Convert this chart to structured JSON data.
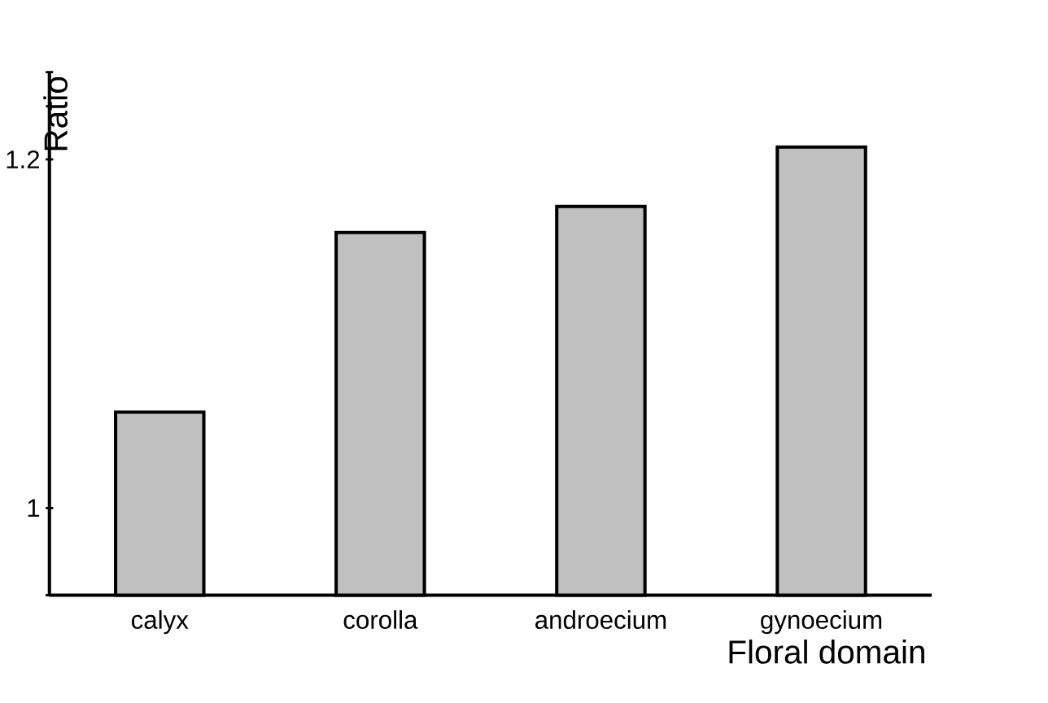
{
  "chart_data": {
    "type": "bar",
    "xlabel": "Floral domain",
    "ylabel": "Ratio",
    "categories": [
      "calyx",
      "corolla",
      "androecium",
      "gynoecium"
    ],
    "values": [
      1.055,
      1.158,
      1.173,
      1.207
    ],
    "color": "#c0c0c0",
    "ylim": [
      0.95,
      1.25
    ],
    "yticks": [
      {
        "value": 0.95,
        "label": null
      },
      1,
      1.2,
      {
        "value": 1.25,
        "label": null
      }
    ]
  }
}
